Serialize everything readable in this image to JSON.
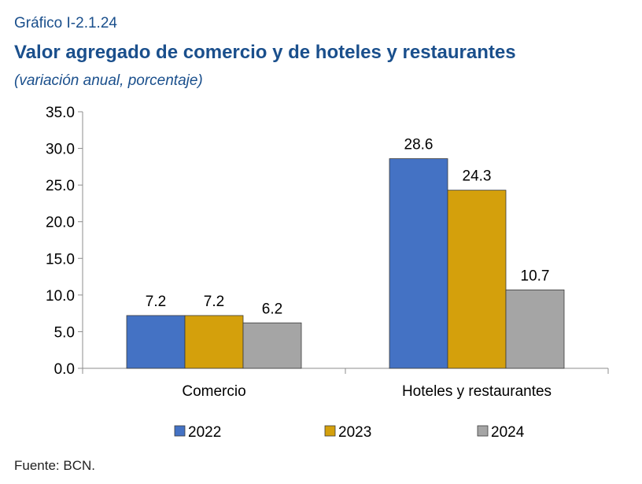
{
  "header": {
    "grafico": "Gráfico I-2.1.24",
    "title": "Valor agregado de comercio y de hoteles y restaurantes",
    "subtitle": "(variación anual, porcentaje)"
  },
  "footer": {
    "source": "Fuente: BCN."
  },
  "chart_data": {
    "type": "bar",
    "title": "Valor agregado de comercio y de hoteles y restaurantes",
    "subtitle": "(variación anual, porcentaje)",
    "categories": [
      "Comercio",
      "Hoteles y restaurantes"
    ],
    "series": [
      {
        "name": "2022",
        "values": [
          7.2,
          28.6
        ],
        "color": "#4472c4"
      },
      {
        "name": "2023",
        "values": [
          7.2,
          24.3
        ],
        "color": "#d4a00c"
      },
      {
        "name": "2024",
        "values": [
          6.2,
          10.7
        ],
        "color": "#a5a5a5"
      }
    ],
    "ylim": [
      0,
      35
    ],
    "yticks": [
      "0.0",
      "5.0",
      "10.0",
      "15.0",
      "20.0",
      "25.0",
      "30.0",
      "35.0"
    ],
    "data_labels": [
      [
        "7.2",
        "28.6"
      ],
      [
        "7.2",
        "24.3"
      ],
      [
        "6.2",
        "10.7"
      ]
    ],
    "grid": false,
    "legend": "bottom"
  }
}
